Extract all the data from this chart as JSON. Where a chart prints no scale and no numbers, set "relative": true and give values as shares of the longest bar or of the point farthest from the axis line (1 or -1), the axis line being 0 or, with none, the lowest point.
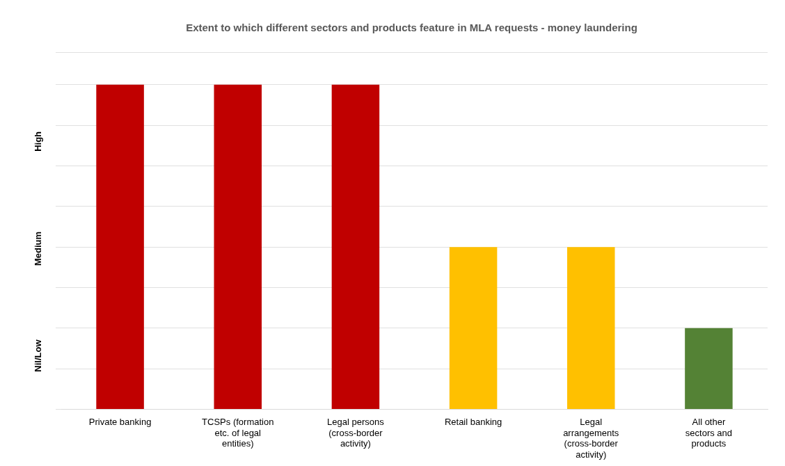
{
  "chart_data": {
    "type": "bar",
    "title": "Extent to which different sectors and products feature in MLA requests - money laundering",
    "categories": [
      "Private banking",
      "TCSPs (formation etc. of legal entities)",
      "Legal persons (cross-border activity)",
      "Retail banking",
      "Legal arrangements (cross-border activity)",
      "All other sectors and products"
    ],
    "values": [
      1,
      1,
      1,
      0.5,
      0.5,
      0.25
    ],
    "colors": [
      "#c00000",
      "#c00000",
      "#c00000",
      "#ffc000",
      "#ffc000",
      "#548235"
    ],
    "relative": true,
    "grid": "y",
    "annotations": [
      "Nil/Low",
      "Medium",
      "High"
    ]
  }
}
